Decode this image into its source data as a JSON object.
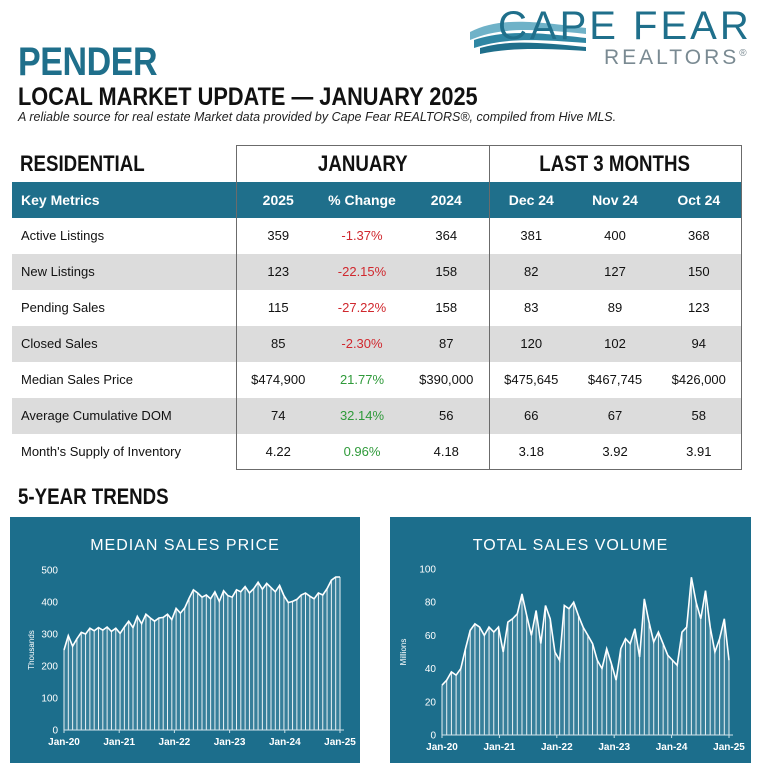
{
  "logo": {
    "line1": "CAPE FEAR",
    "line2": "REALTORS",
    "reg": "®"
  },
  "header": {
    "title": "PENDER",
    "subtitle": "LOCAL MARKET UPDATE — JANUARY 2025",
    "tagline": "A reliable source for real estate Market data provided by Cape Fear REALTORS®, compiled from Hive MLS."
  },
  "table": {
    "group_residential": "RESIDENTIAL",
    "group_january": "JANUARY",
    "group_last3": "LAST 3 MONTHS",
    "headers": [
      "Key Metrics",
      "2025",
      "% Change",
      "2024",
      "Dec 24",
      "Nov 24",
      "Oct 24"
    ],
    "rows": [
      {
        "metric": "Active Listings",
        "y2025": "359",
        "change": "-1.37%",
        "dir": "neg",
        "y2024": "364",
        "dec": "381",
        "nov": "400",
        "oct": "368"
      },
      {
        "metric": "New Listings",
        "y2025": "123",
        "change": "-22.15%",
        "dir": "neg",
        "y2024": "158",
        "dec": "82",
        "nov": "127",
        "oct": "150"
      },
      {
        "metric": "Pending Sales",
        "y2025": "115",
        "change": "-27.22%",
        "dir": "neg",
        "y2024": "158",
        "dec": "83",
        "nov": "89",
        "oct": "123"
      },
      {
        "metric": "Closed Sales",
        "y2025": "85",
        "change": "-2.30%",
        "dir": "neg",
        "y2024": "87",
        "dec": "120",
        "nov": "102",
        "oct": "94"
      },
      {
        "metric": "Median Sales Price",
        "y2025": "$474,900",
        "change": "21.77%",
        "dir": "pos",
        "y2024": "$390,000",
        "dec": "$475,645",
        "nov": "$467,745",
        "oct": "$426,000"
      },
      {
        "metric": "Average Cumulative DOM",
        "y2025": "74",
        "change": "32.14%",
        "dir": "pos",
        "y2024": "56",
        "dec": "66",
        "nov": "67",
        "oct": "58"
      },
      {
        "metric": "Month's Supply of Inventory",
        "y2025": "4.22",
        "change": "0.96%",
        "dir": "pos",
        "y2024": "4.18",
        "dec": "3.18",
        "nov": "3.92",
        "oct": "3.91"
      }
    ]
  },
  "trends_heading": "5-YEAR TRENDS",
  "chart_data": [
    {
      "type": "area",
      "title": "MEDIAN SALES PRICE",
      "ylabel": "Thousands",
      "xlabel": "",
      "ylim": [
        0,
        500
      ],
      "yticks": [
        0,
        100,
        200,
        300,
        400,
        500
      ],
      "xticks": [
        "Jan-20",
        "Jan-21",
        "Jan-22",
        "Jan-23",
        "Jan-24",
        "Jan-25"
      ],
      "x_start": "Jan-20",
      "x_end": "Jan-25",
      "values": [
        250,
        295,
        262,
        285,
        305,
        300,
        318,
        310,
        320,
        312,
        322,
        308,
        318,
        302,
        322,
        340,
        320,
        355,
        332,
        362,
        350,
        340,
        350,
        352,
        362,
        345,
        380,
        365,
        382,
        412,
        438,
        428,
        415,
        422,
        410,
        432,
        402,
        435,
        420,
        415,
        438,
        432,
        448,
        428,
        442,
        462,
        440,
        458,
        445,
        432,
        452,
        420,
        398,
        402,
        408,
        422,
        428,
        418,
        410,
        428,
        422,
        442,
        468,
        478,
        478
      ],
      "grid": false,
      "legend": "none"
    },
    {
      "type": "area",
      "title": "TOTAL SALES VOLUME",
      "ylabel": "Millions",
      "xlabel": "",
      "ylim": [
        0,
        100
      ],
      "yticks": [
        0,
        20,
        40,
        60,
        80,
        100
      ],
      "xticks": [
        "Jan-20",
        "Jan-21",
        "Jan-22",
        "Jan-23",
        "Jan-24",
        "Jan-25"
      ],
      "x_start": "Jan-20",
      "x_end": "Jan-25",
      "values": [
        30,
        33,
        38,
        36,
        40,
        52,
        63,
        67,
        65,
        60,
        65,
        62,
        65,
        50,
        68,
        70,
        73,
        85,
        72,
        60,
        75,
        55,
        78,
        70,
        50,
        45,
        78,
        76,
        80,
        72,
        65,
        60,
        55,
        45,
        40,
        52,
        43,
        33,
        52,
        58,
        55,
        64,
        47,
        82,
        68,
        56,
        62,
        55,
        48,
        45,
        42,
        62,
        65,
        95,
        80,
        70,
        87,
        65,
        50,
        58,
        70,
        45
      ],
      "grid": false,
      "legend": "none"
    }
  ]
}
